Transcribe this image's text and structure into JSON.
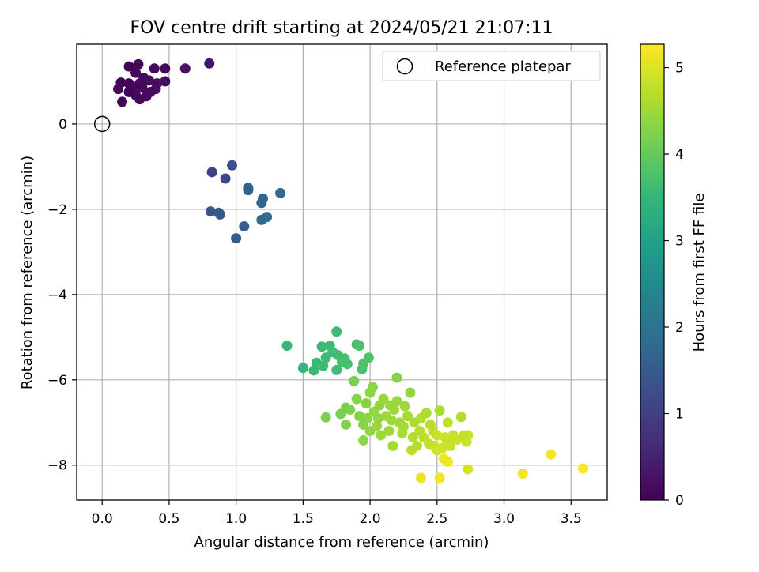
{
  "chart_data": {
    "type": "scatter",
    "title": "FOV centre drift starting at 2024/05/21 21:07:11",
    "xlabel": "Angular distance from reference (arcmin)",
    "ylabel": "Rotation from reference (arcmin)",
    "xlim": [
      -0.19,
      3.77
    ],
    "ylim": [
      -8.82,
      1.87
    ],
    "xticks": [
      0.0,
      0.5,
      1.0,
      1.5,
      2.0,
      2.5,
      3.0,
      3.5
    ],
    "xtick_labels": [
      "0.0",
      "0.5",
      "1.0",
      "1.5",
      "2.0",
      "2.5",
      "3.0",
      "3.5"
    ],
    "yticks": [
      0,
      -2,
      -4,
      -6,
      -8
    ],
    "ytick_labels": [
      "0",
      "−2",
      "−4",
      "−6",
      "−8"
    ],
    "grid": true,
    "legend": {
      "position": "top-right",
      "label": "Reference platepar"
    },
    "reference_point": {
      "x": 0.0,
      "y": 0.0
    },
    "colorbar": {
      "label": "Hours from first FF file",
      "range": [
        0,
        5.27
      ],
      "ticks": [
        0,
        1,
        2,
        3,
        4,
        5
      ],
      "tick_labels": [
        "0",
        "1",
        "2",
        "3",
        "4",
        "5"
      ],
      "colormap": "viridis",
      "stops": [
        "#440154",
        "#482878",
        "#3e4989",
        "#31688e",
        "#26828e",
        "#1f9e89",
        "#35b779",
        "#6ece58",
        "#b5de2b",
        "#fde725"
      ]
    },
    "points": [
      {
        "x": 0.2,
        "y": 1.35,
        "h": 0.05
      },
      {
        "x": 0.27,
        "y": 1.4,
        "h": 0.1
      },
      {
        "x": 0.39,
        "y": 1.3,
        "h": 0.1
      },
      {
        "x": 0.47,
        "y": 1.3,
        "h": 0.15
      },
      {
        "x": 0.8,
        "y": 1.42,
        "h": 0.3
      },
      {
        "x": 0.62,
        "y": 1.3,
        "h": 0.25
      },
      {
        "x": 0.25,
        "y": 1.2,
        "h": 0.1
      },
      {
        "x": 0.14,
        "y": 0.97,
        "h": 0.05
      },
      {
        "x": 0.2,
        "y": 0.95,
        "h": 0.05
      },
      {
        "x": 0.12,
        "y": 0.82,
        "h": 0.05
      },
      {
        "x": 0.23,
        "y": 0.85,
        "h": 0.1
      },
      {
        "x": 0.28,
        "y": 0.95,
        "h": 0.1
      },
      {
        "x": 0.31,
        "y": 1.08,
        "h": 0.15
      },
      {
        "x": 0.35,
        "y": 1.02,
        "h": 0.15
      },
      {
        "x": 0.41,
        "y": 0.95,
        "h": 0.2
      },
      {
        "x": 0.47,
        "y": 1.0,
        "h": 0.2
      },
      {
        "x": 0.4,
        "y": 0.82,
        "h": 0.2
      },
      {
        "x": 0.25,
        "y": 0.68,
        "h": 0.1
      },
      {
        "x": 0.28,
        "y": 0.58,
        "h": 0.1
      },
      {
        "x": 0.33,
        "y": 0.65,
        "h": 0.15
      },
      {
        "x": 0.36,
        "y": 0.75,
        "h": 0.15
      },
      {
        "x": 0.15,
        "y": 0.52,
        "h": 0.05
      },
      {
        "x": 0.2,
        "y": 0.75,
        "h": 0.05
      },
      {
        "x": 0.3,
        "y": 0.85,
        "h": 0.1
      },
      {
        "x": 0.82,
        "y": -1.13,
        "h": 1.0
      },
      {
        "x": 0.92,
        "y": -1.28,
        "h": 1.1
      },
      {
        "x": 0.97,
        "y": -0.97,
        "h": 1.3
      },
      {
        "x": 1.09,
        "y": -1.5,
        "h": 1.6
      },
      {
        "x": 1.09,
        "y": -1.55,
        "h": 1.65
      },
      {
        "x": 1.2,
        "y": -1.75,
        "h": 1.7
      },
      {
        "x": 1.19,
        "y": -1.85,
        "h": 1.7
      },
      {
        "x": 1.33,
        "y": -1.62,
        "h": 1.8
      },
      {
        "x": 0.81,
        "y": -2.05,
        "h": 1.4
      },
      {
        "x": 0.87,
        "y": -2.08,
        "h": 1.5
      },
      {
        "x": 0.88,
        "y": -2.12,
        "h": 1.5
      },
      {
        "x": 1.19,
        "y": -2.25,
        "h": 1.8
      },
      {
        "x": 1.23,
        "y": -2.18,
        "h": 1.85
      },
      {
        "x": 1.06,
        "y": -2.4,
        "h": 1.6
      },
      {
        "x": 1.0,
        "y": -2.68,
        "h": 1.55
      },
      {
        "x": 1.38,
        "y": -5.2,
        "h": 3.5
      },
      {
        "x": 1.5,
        "y": -5.72,
        "h": 3.5
      },
      {
        "x": 1.58,
        "y": -5.78,
        "h": 3.55
      },
      {
        "x": 1.6,
        "y": -5.6,
        "h": 3.55
      },
      {
        "x": 1.64,
        "y": -5.22,
        "h": 3.6
      },
      {
        "x": 1.67,
        "y": -5.48,
        "h": 3.6
      },
      {
        "x": 1.7,
        "y": -5.2,
        "h": 3.6
      },
      {
        "x": 1.72,
        "y": -5.35,
        "h": 3.65
      },
      {
        "x": 1.75,
        "y": -4.87,
        "h": 3.6
      },
      {
        "x": 1.76,
        "y": -5.42,
        "h": 3.65
      },
      {
        "x": 1.79,
        "y": -5.58,
        "h": 3.7
      },
      {
        "x": 1.81,
        "y": -5.5,
        "h": 3.7
      },
      {
        "x": 1.83,
        "y": -5.63,
        "h": 3.7
      },
      {
        "x": 1.9,
        "y": -5.17,
        "h": 3.7
      },
      {
        "x": 1.92,
        "y": -5.2,
        "h": 3.75
      },
      {
        "x": 1.94,
        "y": -5.75,
        "h": 3.75
      },
      {
        "x": 1.95,
        "y": -5.62,
        "h": 3.8
      },
      {
        "x": 1.99,
        "y": -5.48,
        "h": 3.8
      },
      {
        "x": 1.65,
        "y": -5.67,
        "h": 3.6
      },
      {
        "x": 1.75,
        "y": -5.77,
        "h": 3.65
      },
      {
        "x": 1.67,
        "y": -6.88,
        "h": 4.2
      },
      {
        "x": 1.78,
        "y": -6.8,
        "h": 4.2
      },
      {
        "x": 1.82,
        "y": -7.05,
        "h": 4.25
      },
      {
        "x": 1.85,
        "y": -6.7,
        "h": 4.25
      },
      {
        "x": 1.88,
        "y": -6.03,
        "h": 4.2
      },
      {
        "x": 1.9,
        "y": -6.45,
        "h": 4.3
      },
      {
        "x": 1.92,
        "y": -6.85,
        "h": 4.3
      },
      {
        "x": 1.95,
        "y": -7.42,
        "h": 4.35
      },
      {
        "x": 1.97,
        "y": -6.55,
        "h": 4.3
      },
      {
        "x": 1.98,
        "y": -6.9,
        "h": 4.35
      },
      {
        "x": 2.0,
        "y": -6.3,
        "h": 4.35
      },
      {
        "x": 2.02,
        "y": -6.17,
        "h": 4.35
      },
      {
        "x": 2.03,
        "y": -6.75,
        "h": 4.4
      },
      {
        "x": 2.05,
        "y": -7.08,
        "h": 4.45
      },
      {
        "x": 2.07,
        "y": -6.6,
        "h": 4.4
      },
      {
        "x": 2.08,
        "y": -7.3,
        "h": 4.5
      },
      {
        "x": 2.1,
        "y": -6.45,
        "h": 4.45
      },
      {
        "x": 2.12,
        "y": -6.85,
        "h": 4.5
      },
      {
        "x": 2.14,
        "y": -7.2,
        "h": 4.5
      },
      {
        "x": 2.16,
        "y": -6.95,
        "h": 4.5
      },
      {
        "x": 2.17,
        "y": -7.55,
        "h": 4.55
      },
      {
        "x": 2.18,
        "y": -6.7,
        "h": 4.5
      },
      {
        "x": 2.2,
        "y": -5.95,
        "h": 4.3
      },
      {
        "x": 2.2,
        "y": -6.5,
        "h": 4.45
      },
      {
        "x": 2.22,
        "y": -7.0,
        "h": 4.55
      },
      {
        "x": 2.24,
        "y": -7.25,
        "h": 4.6
      },
      {
        "x": 2.26,
        "y": -6.62,
        "h": 4.5
      },
      {
        "x": 2.28,
        "y": -6.85,
        "h": 4.55
      },
      {
        "x": 2.3,
        "y": -6.3,
        "h": 4.4
      },
      {
        "x": 2.31,
        "y": -7.65,
        "h": 4.7
      },
      {
        "x": 2.33,
        "y": -7.0,
        "h": 4.6
      },
      {
        "x": 2.35,
        "y": -7.55,
        "h": 4.7
      },
      {
        "x": 2.37,
        "y": -7.2,
        "h": 4.7
      },
      {
        "x": 2.38,
        "y": -6.9,
        "h": 4.65
      },
      {
        "x": 2.4,
        "y": -7.35,
        "h": 4.75
      },
      {
        "x": 2.42,
        "y": -6.78,
        "h": 4.6
      },
      {
        "x": 2.44,
        "y": -7.5,
        "h": 4.8
      },
      {
        "x": 2.47,
        "y": -7.2,
        "h": 4.8
      },
      {
        "x": 2.48,
        "y": -7.55,
        "h": 4.85
      },
      {
        "x": 2.5,
        "y": -7.3,
        "h": 4.85
      },
      {
        "x": 2.52,
        "y": -6.72,
        "h": 4.6
      },
      {
        "x": 2.54,
        "y": -7.6,
        "h": 4.9
      },
      {
        "x": 2.56,
        "y": -7.35,
        "h": 4.85
      },
      {
        "x": 2.58,
        "y": -7.0,
        "h": 4.75
      },
      {
        "x": 2.6,
        "y": -7.55,
        "h": 4.85
      },
      {
        "x": 2.62,
        "y": -7.3,
        "h": 4.8
      },
      {
        "x": 2.65,
        "y": -7.4,
        "h": 4.85
      },
      {
        "x": 2.68,
        "y": -6.87,
        "h": 4.65
      },
      {
        "x": 2.7,
        "y": -7.3,
        "h": 4.8
      },
      {
        "x": 2.72,
        "y": -7.45,
        "h": 4.85
      },
      {
        "x": 2.73,
        "y": -7.3,
        "h": 4.8
      },
      {
        "x": 2.73,
        "y": -8.1,
        "h": 4.95
      },
      {
        "x": 1.95,
        "y": -7.05,
        "h": 4.3
      },
      {
        "x": 2.06,
        "y": -6.9,
        "h": 4.4
      },
      {
        "x": 2.15,
        "y": -6.6,
        "h": 4.45
      },
      {
        "x": 2.25,
        "y": -7.1,
        "h": 4.55
      },
      {
        "x": 2.32,
        "y": -7.35,
        "h": 4.65
      },
      {
        "x": 2.45,
        "y": -7.05,
        "h": 4.7
      },
      {
        "x": 2.5,
        "y": -7.65,
        "h": 4.9
      },
      {
        "x": 2.58,
        "y": -7.45,
        "h": 4.85
      },
      {
        "x": 2.0,
        "y": -7.2,
        "h": 4.4
      },
      {
        "x": 1.82,
        "y": -6.65,
        "h": 4.2
      },
      {
        "x": 2.38,
        "y": -8.3,
        "h": 5.1
      },
      {
        "x": 2.52,
        "y": -8.3,
        "h": 5.15
      },
      {
        "x": 2.55,
        "y": -7.85,
        "h": 5.15
      },
      {
        "x": 2.58,
        "y": -7.92,
        "h": 5.15
      },
      {
        "x": 3.14,
        "y": -8.2,
        "h": 5.2
      },
      {
        "x": 3.35,
        "y": -7.75,
        "h": 5.2
      },
      {
        "x": 3.59,
        "y": -8.08,
        "h": 5.25
      }
    ]
  }
}
